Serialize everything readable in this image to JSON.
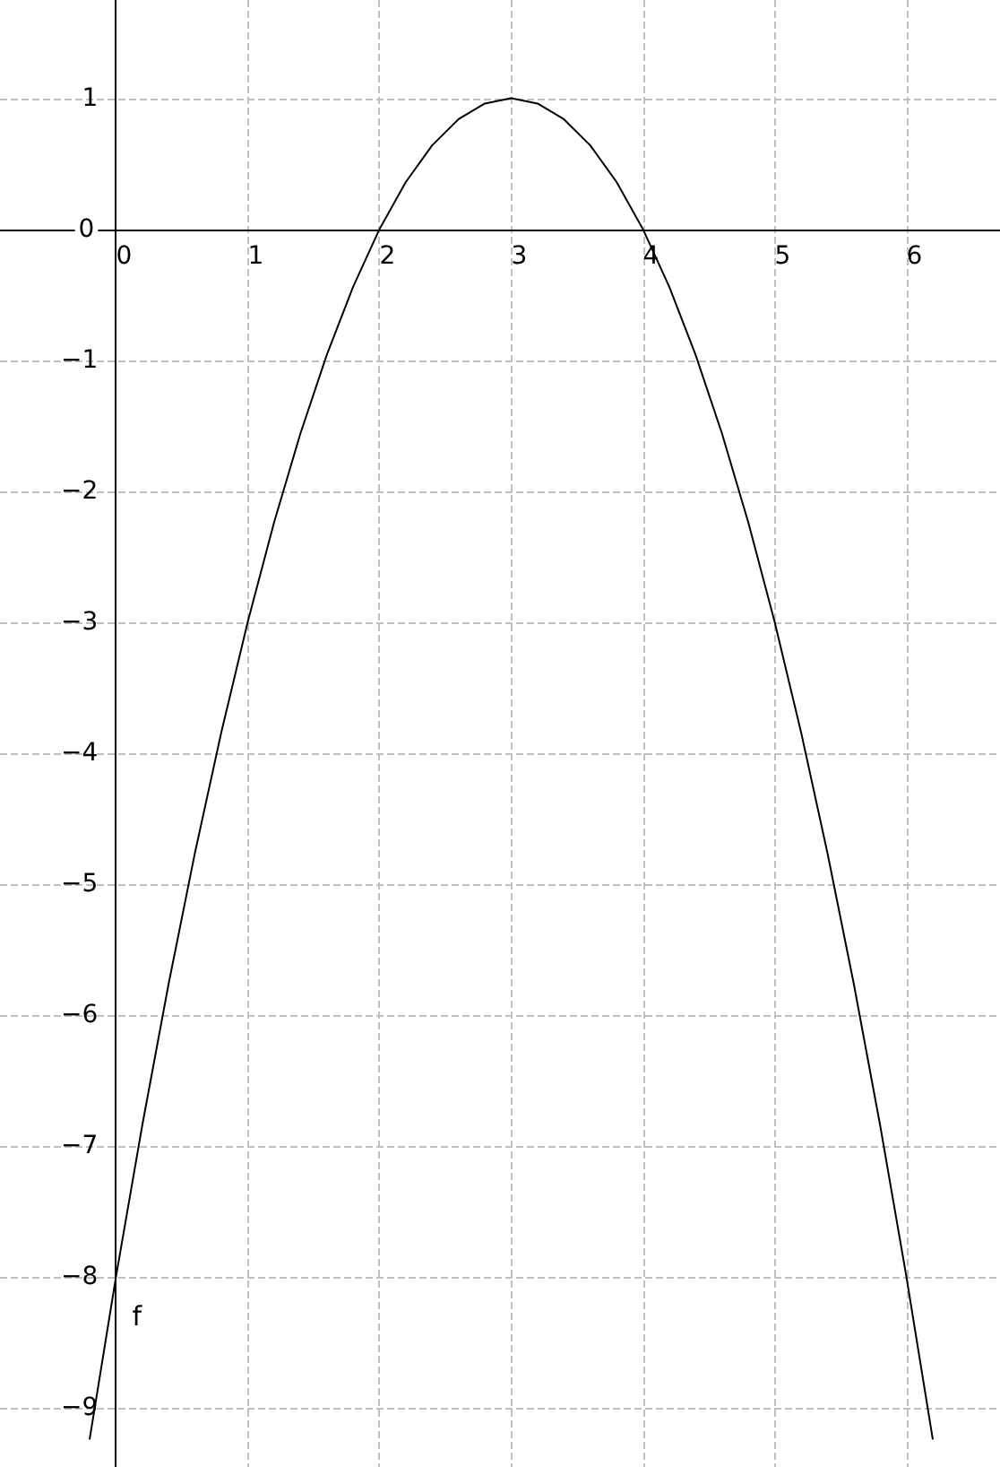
{
  "chart_data": {
    "type": "line",
    "x": [
      -0.2,
      0,
      0.2,
      0.4,
      0.6,
      0.8,
      1,
      1.2,
      1.4,
      1.6,
      1.8,
      2,
      2.2,
      2.4,
      2.6,
      2.8,
      3,
      3.2,
      3.4,
      3.6,
      3.8,
      4,
      4.2,
      4.4,
      4.6,
      4.8,
      5,
      5.2,
      5.4,
      5.6,
      5.8,
      6,
      6.2
    ],
    "series": [
      {
        "name": "f",
        "color": "#000000",
        "values": [
          -9.24,
          -8,
          -6.84,
          -5.76,
          -4.76,
          -3.84,
          -3,
          -2.24,
          -1.56,
          -0.96,
          -0.44,
          0,
          0.36,
          0.64,
          0.84,
          0.96,
          1,
          0.96,
          0.84,
          0.64,
          0.36,
          0,
          -0.44,
          -0.96,
          -1.56,
          -2.24,
          -3,
          -3.84,
          -4.76,
          -5.76,
          -6.84,
          -8,
          -9.24
        ]
      }
    ],
    "xlim": [
      -0.88,
      6.71
    ],
    "ylim": [
      -9.45,
      1.75
    ],
    "xticks": [
      0,
      1,
      2,
      3,
      4,
      5,
      6
    ],
    "yticks": [
      {
        "value": -9,
        "label": "−9"
      },
      {
        "value": -8,
        "label": "−8"
      },
      {
        "value": -7,
        "label": "−7"
      },
      {
        "value": -6,
        "label": "−6"
      },
      {
        "value": -5,
        "label": "−5"
      },
      {
        "value": -4,
        "label": "−4"
      },
      {
        "value": -3,
        "label": "−3"
      },
      {
        "value": -2,
        "label": "−2"
      },
      {
        "value": -1,
        "label": "−1"
      },
      0,
      1
    ],
    "grid": true,
    "marker": "none",
    "line_style": "solid"
  }
}
